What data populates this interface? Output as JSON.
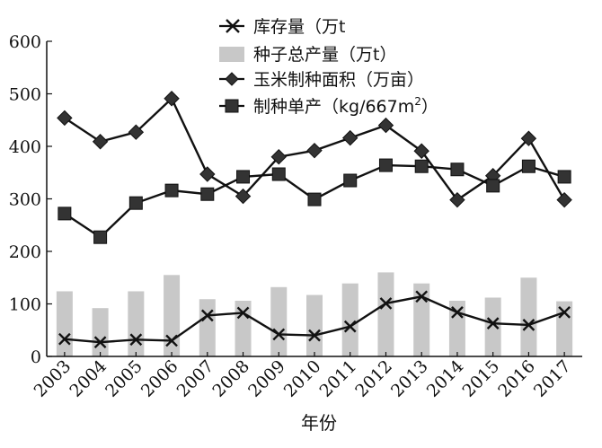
{
  "chart_data": {
    "type": "bar+line",
    "xlabel": "年份",
    "ylabel": "",
    "ylim": [
      0,
      600
    ],
    "yticks": [
      0,
      100,
      200,
      300,
      400,
      500,
      600
    ],
    "categories": [
      "2003",
      "2004",
      "2005",
      "2006",
      "2007",
      "2008",
      "2009",
      "2010",
      "2011",
      "2012",
      "2013",
      "2014",
      "2015",
      "2016",
      "2017"
    ],
    "grid": false,
    "legend_position": "top-right",
    "legend": {
      "stock": "库存量（万t",
      "total": "种子总产量（万t）",
      "area": "玉米制种面积（万亩）",
      "yield_prefix": "制种单产（kg/667m",
      "yield_sup": "2",
      "yield_suffix": "）"
    },
    "series": [
      {
        "key": "total",
        "type": "bar",
        "color": "#c8c8c8",
        "values": [
          124,
          92,
          124,
          155,
          109,
          106,
          132,
          117,
          139,
          160,
          139,
          106,
          112,
          150,
          105
        ]
      },
      {
        "key": "stock",
        "type": "line",
        "marker": "x",
        "color": "#111111",
        "values": [
          33,
          27,
          32,
          30,
          78,
          83,
          42,
          40,
          57,
          101,
          114,
          84,
          63,
          60,
          84
        ]
      },
      {
        "key": "area",
        "type": "line",
        "marker": "diamond",
        "color": "#111111",
        "values": [
          454,
          409,
          427,
          491,
          347,
          305,
          380,
          392,
          416,
          440,
          391,
          298,
          344,
          415,
          298
        ]
      },
      {
        "key": "yield",
        "type": "line",
        "marker": "square",
        "color": "#111111",
        "values": [
          272,
          227,
          292,
          316,
          309,
          342,
          347,
          299,
          335,
          364,
          362,
          356,
          325,
          362,
          342
        ]
      }
    ]
  }
}
